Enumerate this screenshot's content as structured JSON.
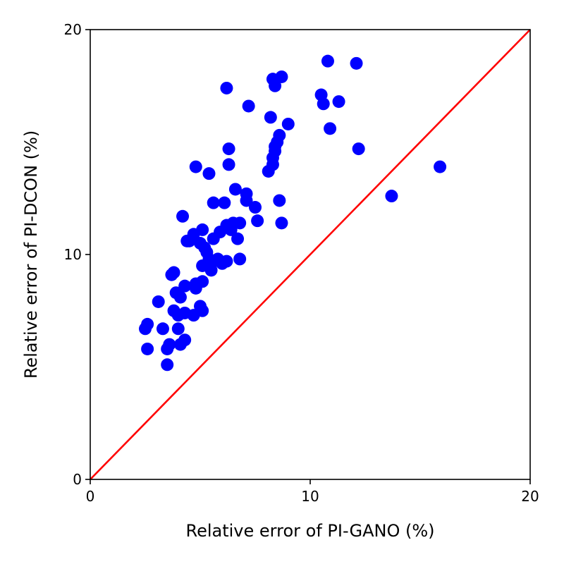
{
  "chart_data": {
    "type": "scatter",
    "xlabel": "Relative error of PI-GANO (%)",
    "ylabel": "Relative error of PI-DCON (%)",
    "xlim": [
      0,
      20
    ],
    "ylim": [
      0,
      20
    ],
    "xticks": [
      0,
      10,
      20
    ],
    "yticks": [
      0,
      10,
      20
    ],
    "grid": false,
    "legend": "none",
    "colors": {
      "points": "#0000ff",
      "reference_line": "#ff0000"
    },
    "reference_line": {
      "from": [
        0,
        0
      ],
      "to": [
        20,
        20
      ]
    },
    "series": [
      {
        "points": [
          [
            2.5,
            6.7
          ],
          [
            2.6,
            6.9
          ],
          [
            2.6,
            5.8
          ],
          [
            3.1,
            7.9
          ],
          [
            3.3,
            6.7
          ],
          [
            3.5,
            5.8
          ],
          [
            3.5,
            5.1
          ],
          [
            3.6,
            6.0
          ],
          [
            3.7,
            9.1
          ],
          [
            3.8,
            9.2
          ],
          [
            3.8,
            7.5
          ],
          [
            3.9,
            8.3
          ],
          [
            4.0,
            7.3
          ],
          [
            4.0,
            6.7
          ],
          [
            4.1,
            8.1
          ],
          [
            4.1,
            6.0
          ],
          [
            4.2,
            11.7
          ],
          [
            4.3,
            6.2
          ],
          [
            4.3,
            7.4
          ],
          [
            4.3,
            8.6
          ],
          [
            4.4,
            10.6
          ],
          [
            4.5,
            10.6
          ],
          [
            4.7,
            10.9
          ],
          [
            4.7,
            7.3
          ],
          [
            4.8,
            8.7
          ],
          [
            4.8,
            8.5
          ],
          [
            4.8,
            13.9
          ],
          [
            5.0,
            10.5
          ],
          [
            5.0,
            7.7
          ],
          [
            5.1,
            11.1
          ],
          [
            5.1,
            8.8
          ],
          [
            5.1,
            7.5
          ],
          [
            5.1,
            9.5
          ],
          [
            5.2,
            10.3
          ],
          [
            5.3,
            10.1
          ],
          [
            5.4,
            9.8
          ],
          [
            5.4,
            13.6
          ],
          [
            5.5,
            9.6
          ],
          [
            5.5,
            9.3
          ],
          [
            5.6,
            10.7
          ],
          [
            5.6,
            12.3
          ],
          [
            5.8,
            9.8
          ],
          [
            5.9,
            11.0
          ],
          [
            6.0,
            9.6
          ],
          [
            6.1,
            12.3
          ],
          [
            6.2,
            11.3
          ],
          [
            6.2,
            9.7
          ],
          [
            6.2,
            17.4
          ],
          [
            6.3,
            14.7
          ],
          [
            6.3,
            14.0
          ],
          [
            6.4,
            11.1
          ],
          [
            6.5,
            11.4
          ],
          [
            6.6,
            12.9
          ],
          [
            6.7,
            10.7
          ],
          [
            6.8,
            11.4
          ],
          [
            6.8,
            9.8
          ],
          [
            7.1,
            12.7
          ],
          [
            7.1,
            12.4
          ],
          [
            7.2,
            16.6
          ],
          [
            7.5,
            12.1
          ],
          [
            7.6,
            11.5
          ],
          [
            8.1,
            13.7
          ],
          [
            8.2,
            16.1
          ],
          [
            8.3,
            14.0
          ],
          [
            8.3,
            14.3
          ],
          [
            8.3,
            17.8
          ],
          [
            8.4,
            14.6
          ],
          [
            8.4,
            14.8
          ],
          [
            8.4,
            17.5
          ],
          [
            8.5,
            15.0
          ],
          [
            8.6,
            12.4
          ],
          [
            8.6,
            15.3
          ],
          [
            8.7,
            17.9
          ],
          [
            8.7,
            11.4
          ],
          [
            9.0,
            15.8
          ],
          [
            10.5,
            17.1
          ],
          [
            10.6,
            16.7
          ],
          [
            10.8,
            18.6
          ],
          [
            10.9,
            15.6
          ],
          [
            11.3,
            16.8
          ],
          [
            12.1,
            18.5
          ],
          [
            12.2,
            14.7
          ],
          [
            13.7,
            12.6
          ],
          [
            15.9,
            13.9
          ]
        ]
      }
    ]
  }
}
